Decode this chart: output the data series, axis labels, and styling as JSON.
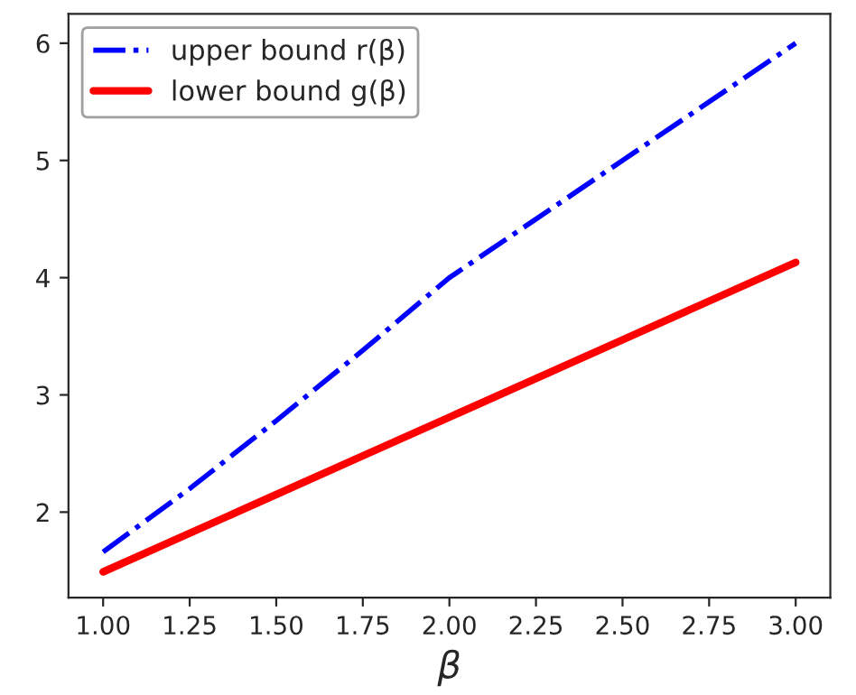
{
  "chart_data": {
    "type": "line",
    "xlabel": "β",
    "x": [
      1.0,
      1.25,
      1.5,
      1.75,
      2.0,
      2.5,
      3.0
    ],
    "series": [
      {
        "name": "upper bound r(β)",
        "color": "#0000ff",
        "line_style": "dashdot",
        "values": [
          1.66,
          2.2,
          2.78,
          3.38,
          4.0,
          5.0,
          6.0
        ]
      },
      {
        "name": "lower bound g(β)",
        "color": "#ff0000",
        "line_style": "solid",
        "values": [
          1.49,
          1.82,
          2.15,
          2.48,
          2.81,
          3.47,
          4.13
        ]
      }
    ],
    "xlim": [
      0.9,
      3.1
    ],
    "ylim": [
      1.27,
      6.25
    ],
    "xticks": [
      {
        "value": 1.0,
        "label": "1.00"
      },
      {
        "value": 1.25,
        "label": "1.25"
      },
      {
        "value": 1.5,
        "label": "1.50"
      },
      {
        "value": 1.75,
        "label": "1.75"
      },
      {
        "value": 2.0,
        "label": "2.00"
      },
      {
        "value": 2.25,
        "label": "2.25"
      },
      {
        "value": 2.5,
        "label": "2.50"
      },
      {
        "value": 2.75,
        "label": "2.75"
      },
      {
        "value": 3.0,
        "label": "3.00"
      }
    ],
    "yticks": [
      2,
      3,
      4,
      5,
      6
    ],
    "legend": "top left",
    "grid": false,
    "marker": "none"
  }
}
